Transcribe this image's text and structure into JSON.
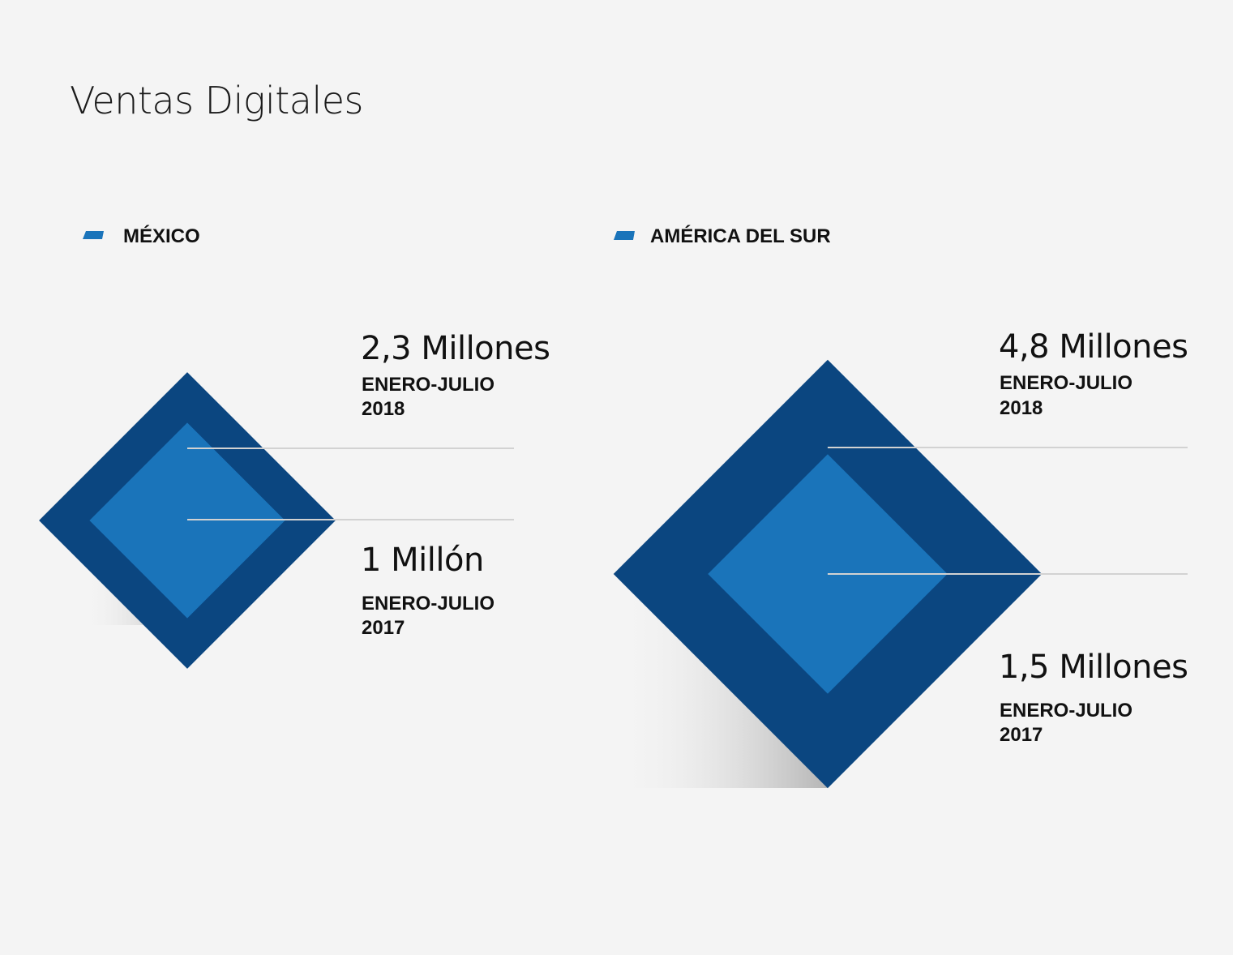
{
  "title": "Ventas Digitales",
  "colors": {
    "background": "#f4f4f4",
    "outer_diamond": "#0b4680",
    "inner_diamond": "#1a74ba",
    "legend_marker": "#1a74ba",
    "leader_line": "#d2d2d2",
    "text": "#111111"
  },
  "chart_data": [
    {
      "type": "diamond-area",
      "region": "MÉXICO",
      "series": [
        {
          "value": 2.3,
          "label": "2,3 Millones",
          "period_line1": "ENERO-JULIO",
          "period_line2": "2018"
        },
        {
          "value": 1.0,
          "label": "1 Millón",
          "period_line1": "ENERO-JULIO",
          "period_line2": "2017"
        }
      ]
    },
    {
      "type": "diamond-area",
      "region": "AMÉRICA DEL SUR",
      "series": [
        {
          "value": 4.8,
          "label": "4,8 Millones",
          "period_line1": "ENERO-JULIO",
          "period_line2": "2018"
        },
        {
          "value": 1.5,
          "label": "1,5 Millones",
          "period_line1": "ENERO-JULIO",
          "period_line2": "2017"
        }
      ]
    }
  ]
}
